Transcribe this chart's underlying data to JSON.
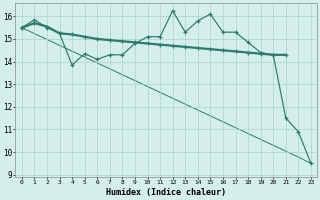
{
  "xlabel": "Humidex (Indice chaleur)",
  "x_values": [
    0,
    1,
    2,
    3,
    4,
    5,
    6,
    7,
    8,
    9,
    10,
    11,
    12,
    13,
    14,
    15,
    16,
    17,
    18,
    19,
    20,
    21,
    22,
    23
  ],
  "line_wavy": [
    15.5,
    15.85,
    15.5,
    15.25,
    13.85,
    14.35,
    14.1,
    14.3,
    14.3,
    14.8,
    15.1,
    15.1,
    16.25,
    15.3,
    15.8,
    16.1,
    15.3,
    15.3,
    14.85,
    14.4,
    14.3,
    11.5,
    10.9,
    9.5
  ],
  "line_thick": [
    15.5,
    15.7,
    15.55,
    15.25,
    15.2,
    15.1,
    15.0,
    14.95,
    14.9,
    14.85,
    14.8,
    14.75,
    14.7,
    14.65,
    14.6,
    14.55,
    14.5,
    14.45,
    14.4,
    14.35,
    14.3,
    14.3,
    null,
    null
  ],
  "line_diag_x": [
    0,
    1,
    2,
    3,
    4,
    5,
    6,
    7,
    8,
    9,
    10,
    11,
    12,
    13,
    14,
    15,
    16,
    17,
    18,
    19,
    20,
    21,
    22,
    23
  ],
  "line_diag_y": [
    15.5,
    15.24,
    14.98,
    14.72,
    14.46,
    14.2,
    13.94,
    13.68,
    13.42,
    13.16,
    12.9,
    12.64,
    12.38,
    12.12,
    11.86,
    11.6,
    11.34,
    11.08,
    10.82,
    10.56,
    10.3,
    10.04,
    9.78,
    9.5
  ],
  "line_color": "#2d7b6c",
  "bg_color": "#d4eeeb",
  "grid_color": "#aad4cf",
  "ylim": [
    8.9,
    16.6
  ],
  "yticks": [
    9,
    10,
    11,
    12,
    13,
    14,
    15,
    16
  ],
  "xlim": [
    -0.5,
    23.5
  ],
  "figsize": [
    3.2,
    2.0
  ],
  "dpi": 100
}
